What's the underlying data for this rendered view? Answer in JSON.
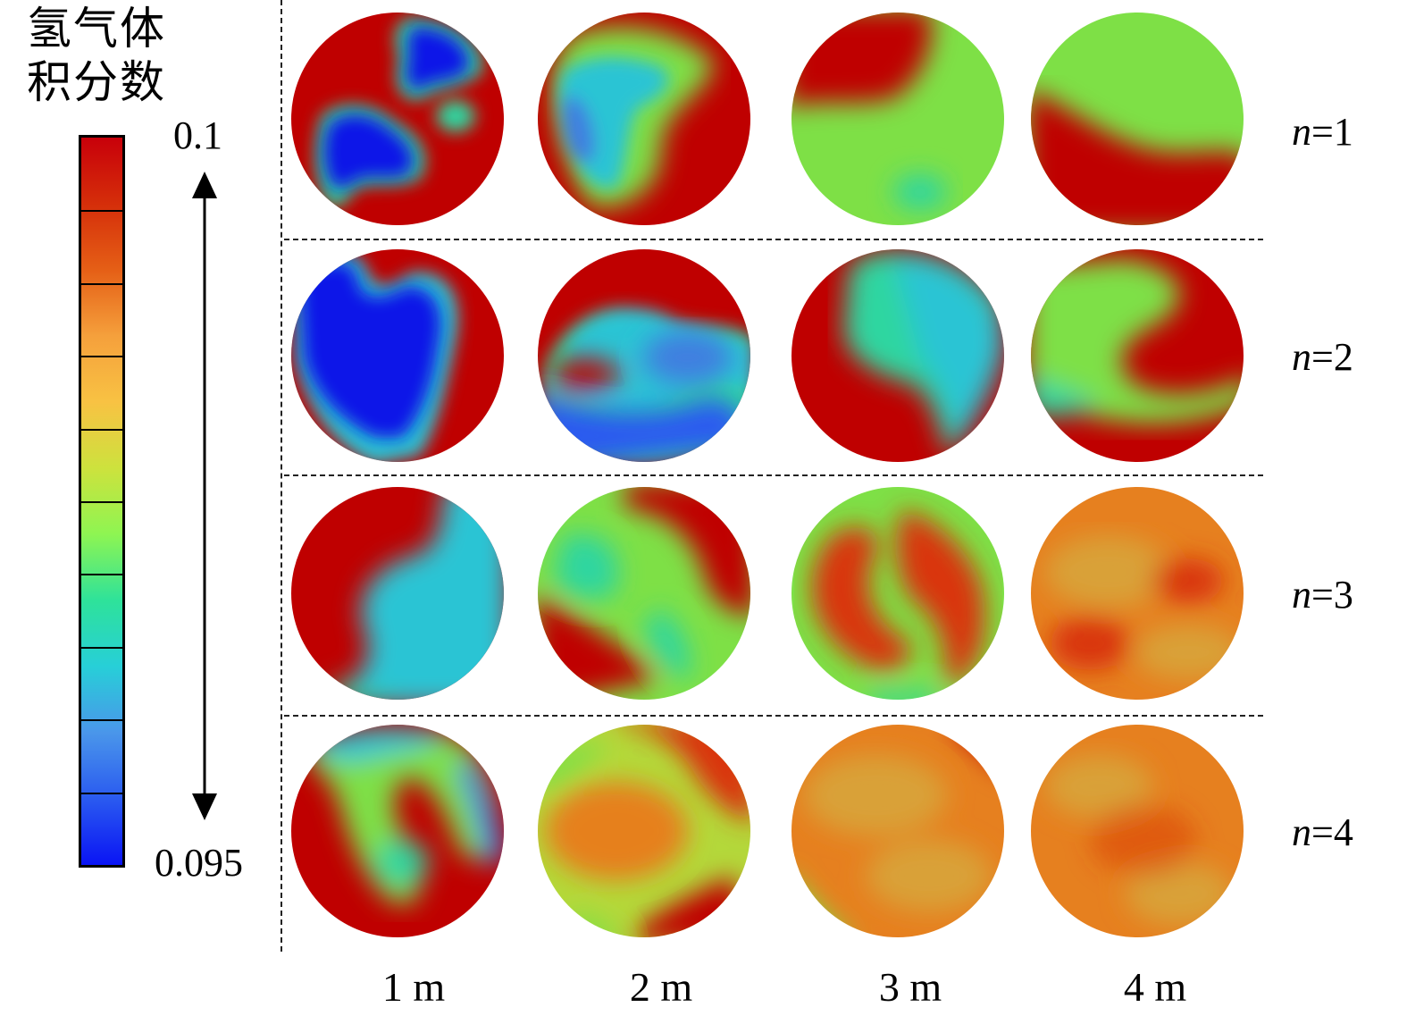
{
  "legend": {
    "title_line1": "氢气体",
    "title_line2": "积分数",
    "max_label": "0.1",
    "min_label": "0.095",
    "colorbar_stops": [
      "#c8000a",
      "#d52e0a",
      "#e55f16",
      "#f5a03c",
      "#f8c243",
      "#cde23d",
      "#8ef552",
      "#2ee29a",
      "#27cfd8",
      "#4a96ea",
      "#2a5af0",
      "#0a14f4"
    ],
    "segments": 10
  },
  "rows": [
    {
      "n_var": "n",
      "n_value": "=1"
    },
    {
      "n_var": "n",
      "n_value": "=2"
    },
    {
      "n_var": "n",
      "n_value": "=3"
    },
    {
      "n_var": "n",
      "n_value": "=4"
    }
  ],
  "columns": [
    "1 m",
    "2 m",
    "3 m",
    "4 m"
  ],
  "colors": {
    "red": "#bf0000",
    "orange_red": "#d9350c",
    "orange": "#e6801f",
    "amber": "#d9a137",
    "yellow_green": "#b4d83a",
    "green": "#7ee046",
    "teal": "#2fd6a0",
    "cyan": "#2ac4d4",
    "blue": "#3f7fe0",
    "deep_blue": "#0a18e8"
  }
}
